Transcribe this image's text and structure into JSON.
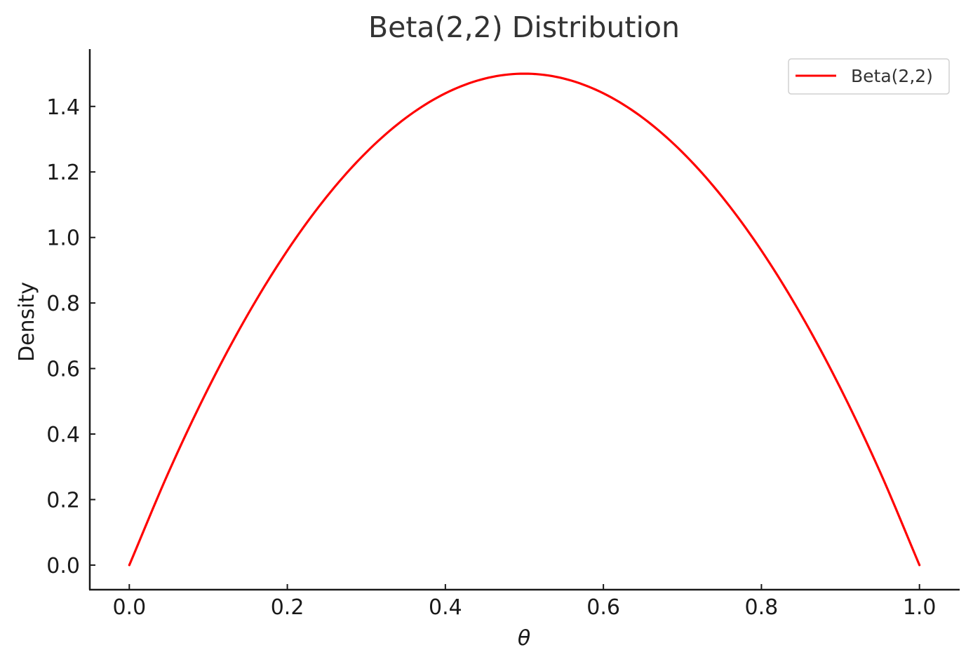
{
  "chart_data": {
    "type": "line",
    "title": "Beta(2,2) Distribution",
    "xlabel": "θ",
    "ylabel": "Density",
    "xlim": [
      -0.05,
      1.05
    ],
    "ylim": [
      -0.075,
      1.575
    ],
    "x_ticks": [
      "0.0",
      "0.2",
      "0.4",
      "0.6",
      "0.8",
      "1.0"
    ],
    "y_ticks": [
      "0.0",
      "0.2",
      "0.4",
      "0.6",
      "0.8",
      "1.0",
      "1.2",
      "1.4"
    ],
    "grid": false,
    "legend_position": "top-right",
    "series": [
      {
        "name": "Beta(2,2)",
        "color": "#ff0000",
        "x": [
          0.0,
          0.05,
          0.1,
          0.15,
          0.2,
          0.25,
          0.3,
          0.35,
          0.4,
          0.45,
          0.5,
          0.55,
          0.6,
          0.65,
          0.7,
          0.75,
          0.8,
          0.85,
          0.9,
          0.95,
          1.0
        ],
        "y": [
          0.0,
          0.285,
          0.54,
          0.765,
          0.96,
          1.125,
          1.26,
          1.365,
          1.44,
          1.485,
          1.5,
          1.485,
          1.44,
          1.365,
          1.26,
          1.125,
          0.96,
          0.765,
          0.54,
          0.285,
          0.0
        ]
      }
    ]
  }
}
